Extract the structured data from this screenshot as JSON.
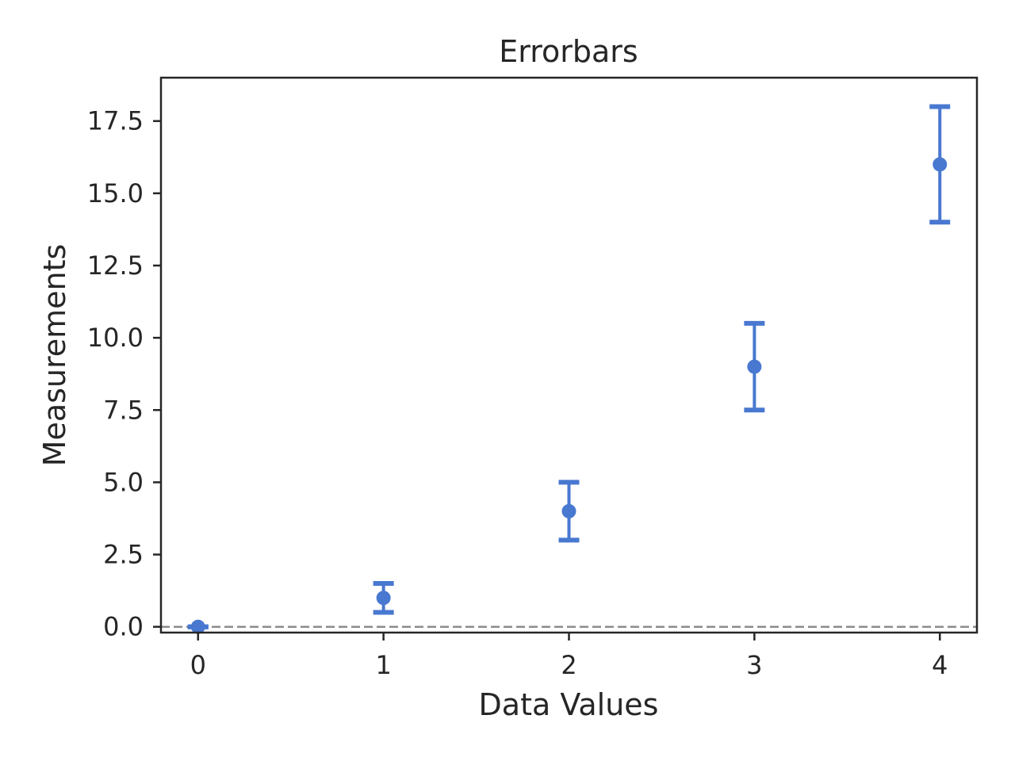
{
  "chart_data": {
    "type": "scatter",
    "title": "Errorbars",
    "xlabel": "Data Values",
    "ylabel": "Measurements",
    "xlim": [
      -0.2,
      4.2
    ],
    "ylim": [
      -0.2,
      19.0
    ],
    "xticks": [
      0,
      1,
      2,
      3,
      4
    ],
    "xtick_labels": [
      "0",
      "1",
      "2",
      "3",
      "4"
    ],
    "yticks": [
      0,
      2.5,
      5,
      7.5,
      10,
      12.5,
      15,
      17.5
    ],
    "ytick_labels": [
      "0.0",
      "2.5",
      "5.0",
      "7.5",
      "10.0",
      "12.5",
      "15.0",
      "17.5"
    ],
    "grid": false,
    "reference_line": {
      "y": 0,
      "style": "dashed",
      "color": "#8c8c8c"
    },
    "series": [
      {
        "color": "#4878d0",
        "x": [
          0,
          1,
          2,
          3,
          4
        ],
        "y": [
          0,
          1,
          4,
          9,
          16
        ],
        "yerr_low": [
          0,
          0.5,
          1.0,
          1.5,
          2.0
        ],
        "yerr_high": [
          0,
          0.5,
          1.0,
          1.5,
          2.0
        ]
      }
    ]
  }
}
